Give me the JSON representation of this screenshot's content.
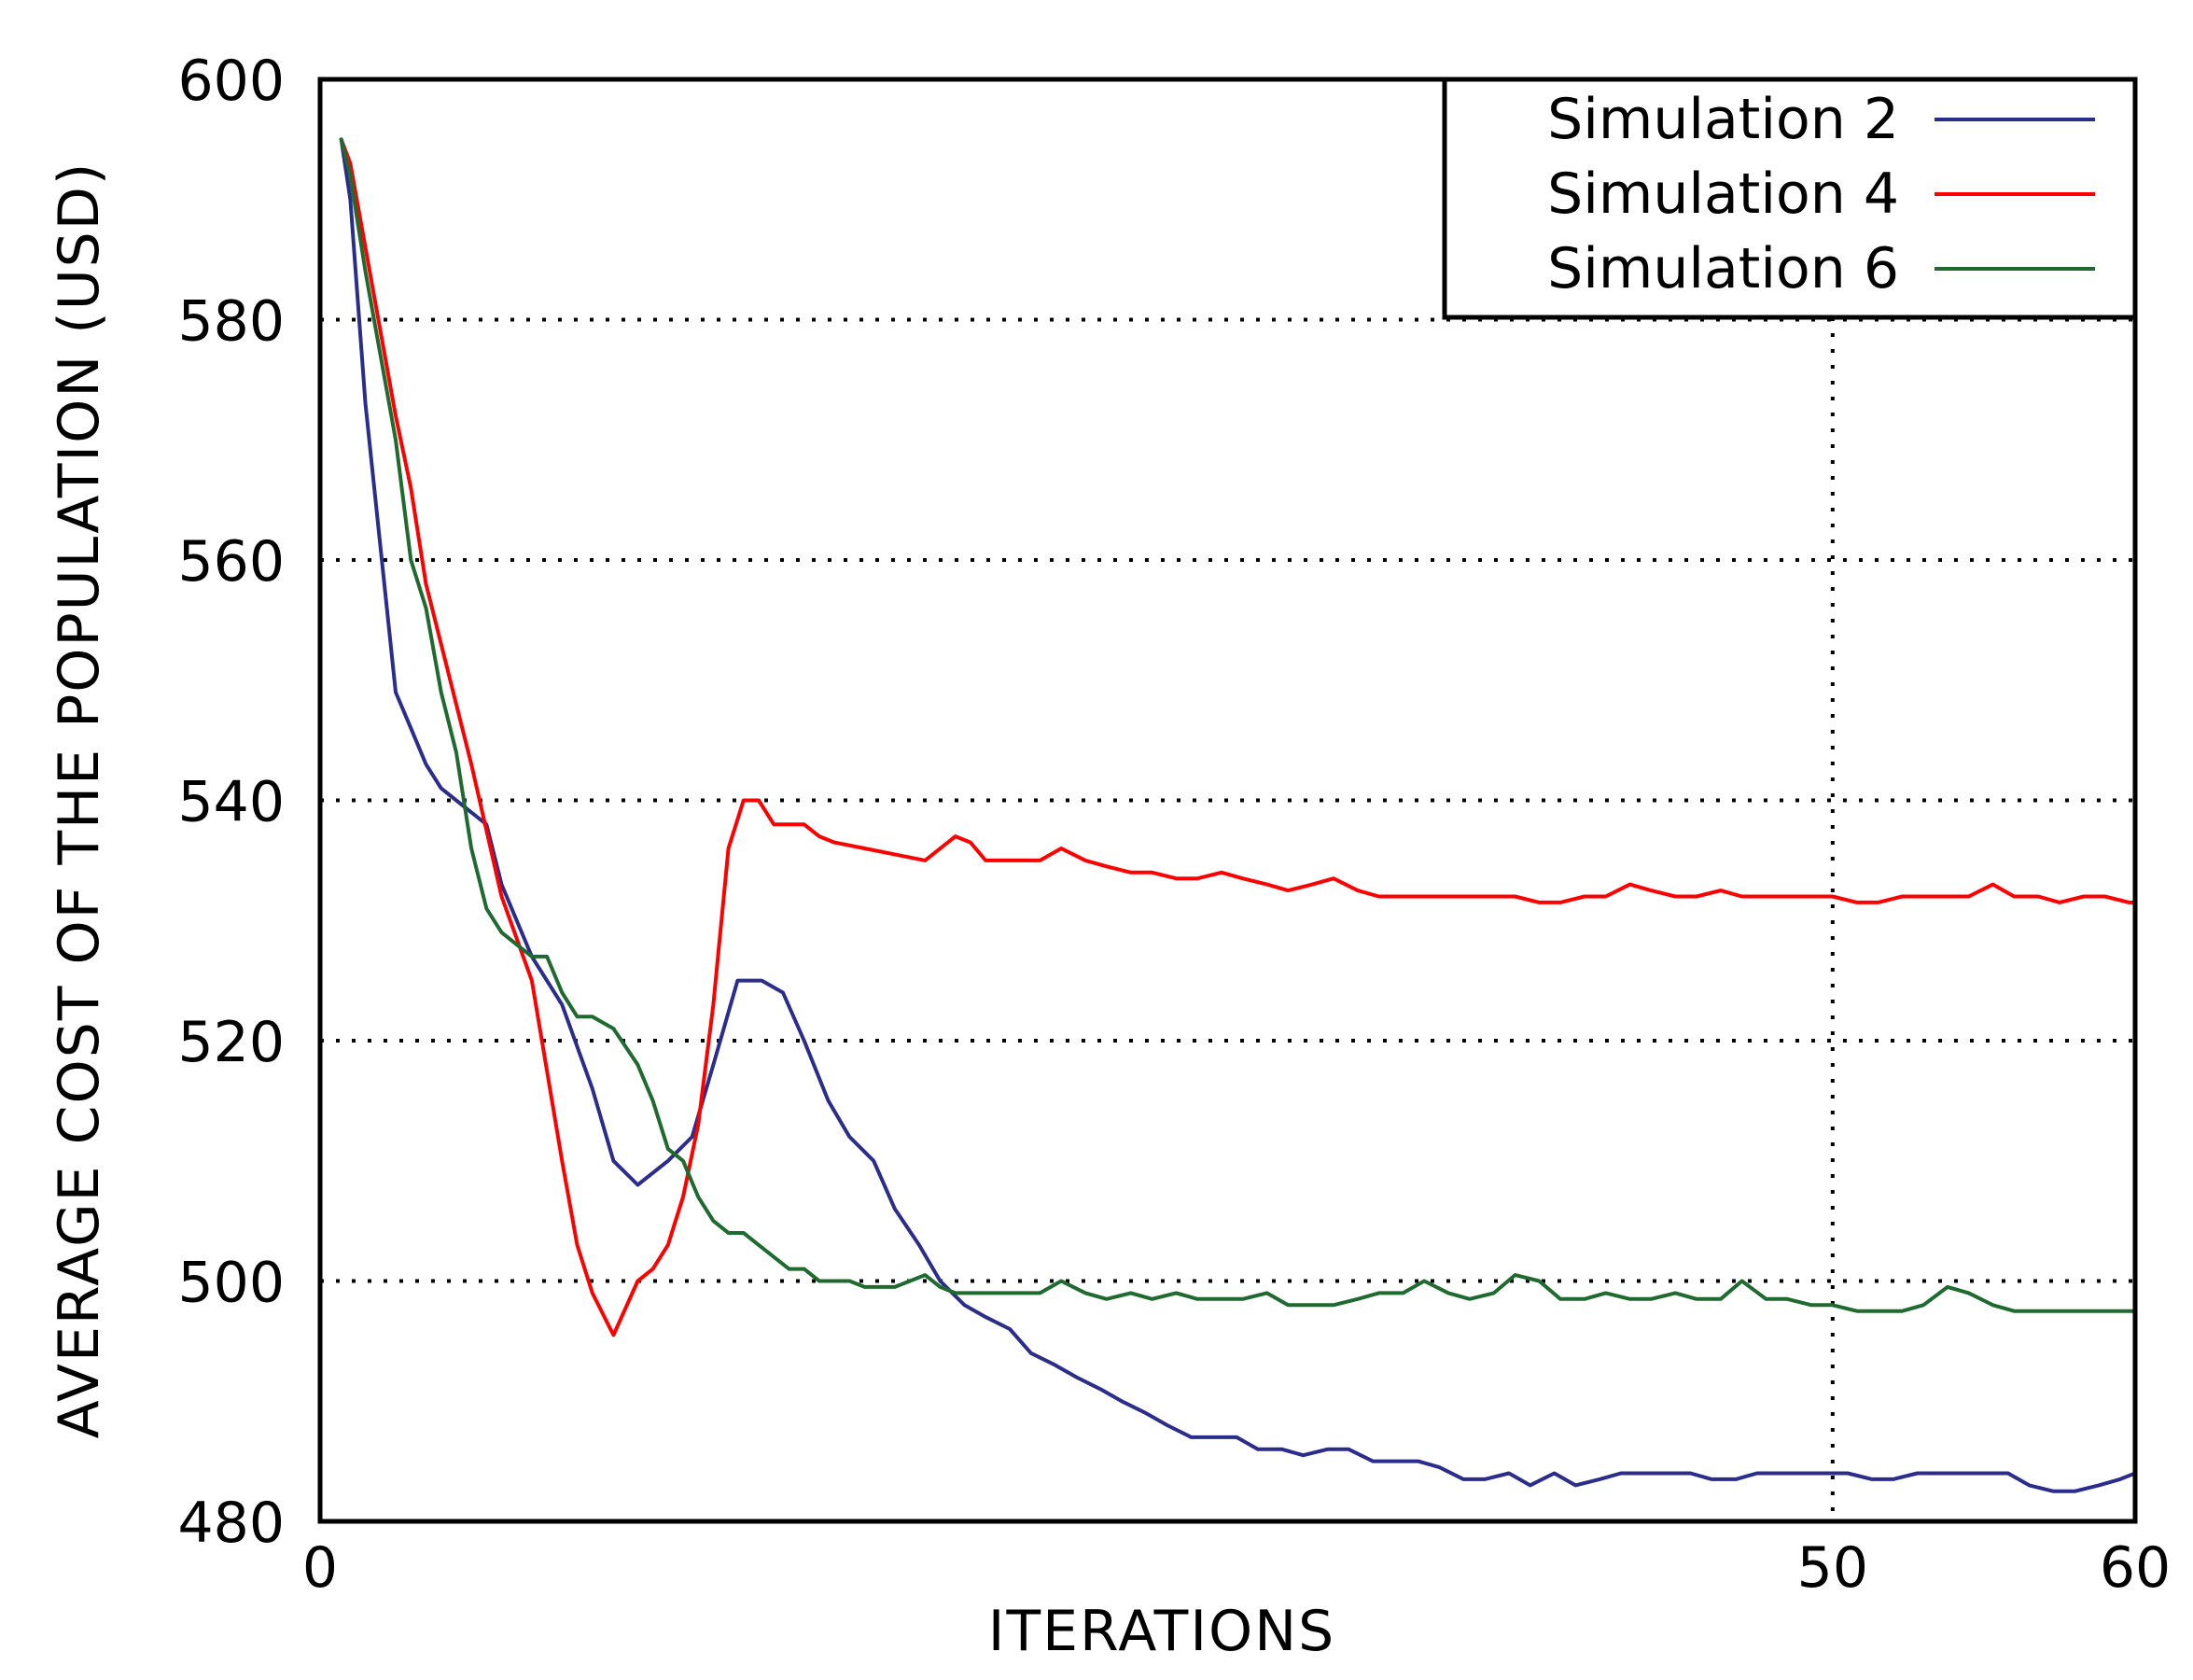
{
  "chart_data": {
    "type": "line",
    "title": "",
    "xlabel": "ITERATIONS",
    "ylabel": "AVERAGE COST OF THE POPULATION (USD)",
    "xlim": [
      0,
      60
    ],
    "ylim": [
      480,
      600
    ],
    "x_ticks": [
      0,
      50,
      60
    ],
    "y_ticks": [
      480,
      500,
      520,
      540,
      560,
      580,
      600
    ],
    "grid": {
      "horizontal_at": [
        500,
        520,
        540,
        560,
        580
      ],
      "vertical_at": [
        50
      ],
      "style": "dotted"
    },
    "legend_position": "top-right",
    "series": [
      {
        "name": "Simulation  2",
        "color": "#2b2d8c",
        "x": [
          0.7,
          1.0,
          1.5,
          2.0,
          2.5,
          3.0,
          3.5,
          4.0,
          4.5,
          5.0,
          5.5,
          6.0,
          7.0,
          8.0,
          9.0,
          9.7,
          10.5,
          11.5,
          12.3,
          13.0,
          13.8,
          14.6,
          15.3,
          16.0,
          16.8,
          17.5,
          18.3,
          19.0,
          19.8,
          20.5,
          21.3,
          22.0,
          22.8,
          23.5,
          24.3,
          25.0,
          25.8,
          26.5,
          27.3,
          28.0,
          28.8,
          29.5,
          30.3,
          31.0,
          31.8,
          32.5,
          33.3,
          34.0,
          34.8,
          35.5,
          36.3,
          37.0,
          37.8,
          38.5,
          39.3,
          40.0,
          40.8,
          41.5,
          42.3,
          43.0,
          43.8,
          44.5,
          45.3,
          46.0,
          46.8,
          47.5,
          48.3,
          49.0,
          49.8,
          50.5,
          51.3,
          52.0,
          52.8,
          53.5,
          54.3,
          55.0,
          55.8,
          56.5,
          57.3,
          58.0,
          58.8,
          59.5,
          60.0
        ],
        "values": [
          595,
          590,
          573,
          561,
          549,
          546,
          543,
          541,
          540,
          539,
          538,
          533,
          527,
          523,
          516,
          510,
          508,
          510,
          512,
          518,
          525,
          525,
          524,
          520,
          515,
          512,
          510,
          506,
          503,
          500,
          498,
          497,
          496,
          494,
          493,
          492,
          491,
          490,
          489,
          488,
          487,
          487,
          487,
          486,
          486,
          485.5,
          486,
          486,
          485,
          485,
          485,
          484.5,
          483.5,
          483.5,
          484,
          483,
          484,
          483,
          483.5,
          484,
          484,
          484,
          484,
          483.5,
          483.5,
          484,
          484,
          484,
          484,
          484,
          483.5,
          483.5,
          484,
          484,
          484,
          484,
          484,
          483,
          482.5,
          482.5,
          483,
          483.5,
          484
        ]
      },
      {
        "name": "Simulation  4",
        "color": "#ff0000",
        "x": [
          0.7,
          1.0,
          1.5,
          2.0,
          2.5,
          3.0,
          3.5,
          4.0,
          5.0,
          6.0,
          7.0,
          8.0,
          8.5,
          9.0,
          9.7,
          10.5,
          11.0,
          11.5,
          12.0,
          12.5,
          13.0,
          13.5,
          14.0,
          14.5,
          15.0,
          15.5,
          16.0,
          16.5,
          17.0,
          18.0,
          19.0,
          20.0,
          21.0,
          21.5,
          22.0,
          23.0,
          23.8,
          24.5,
          25.3,
          26.0,
          26.8,
          27.5,
          28.3,
          29.0,
          29.8,
          30.5,
          31.3,
          32.0,
          32.8,
          33.5,
          34.3,
          35.0,
          35.8,
          36.5,
          37.3,
          38.0,
          38.8,
          39.5,
          40.3,
          41.0,
          41.8,
          42.5,
          43.3,
          44.0,
          44.8,
          45.5,
          46.3,
          47.0,
          47.8,
          48.5,
          49.3,
          50.0,
          50.8,
          51.5,
          52.3,
          53.0,
          53.8,
          54.5,
          55.3,
          56.0,
          56.8,
          57.5,
          58.3,
          59.0,
          59.8,
          60.0
        ],
        "values": [
          595,
          593,
          586,
          579,
          572,
          566,
          558,
          553,
          543,
          532,
          525,
          510,
          503,
          499,
          495.5,
          500,
          501,
          503,
          507,
          513,
          523,
          536,
          540,
          540,
          538,
          538,
          538,
          537,
          536.5,
          536,
          535.5,
          535,
          537,
          536.5,
          535,
          535,
          535,
          536,
          535,
          534.5,
          534,
          534,
          533.5,
          533.5,
          534,
          533.5,
          533,
          532.5,
          533,
          533.5,
          532.5,
          532,
          532,
          532,
          532,
          532,
          532,
          532,
          531.5,
          531.5,
          532,
          532,
          533,
          532.5,
          532,
          532,
          532.5,
          532,
          532,
          532,
          532,
          532,
          531.5,
          531.5,
          532,
          532,
          532,
          532,
          533,
          532,
          532,
          531.5,
          532,
          532,
          531.5,
          531.5
        ]
      },
      {
        "name": "Simulation  6",
        "color": "#1f6a2e",
        "x": [
          0.7,
          1.0,
          1.5,
          2.0,
          2.5,
          3.0,
          3.5,
          4.0,
          4.5,
          5.0,
          5.5,
          6.0,
          6.5,
          7.0,
          7.5,
          8.0,
          8.5,
          9.0,
          9.7,
          10.5,
          11.0,
          11.5,
          12.0,
          12.5,
          13.0,
          13.5,
          14.0,
          14.5,
          15.0,
          15.5,
          16.0,
          16.5,
          17.0,
          17.5,
          18.0,
          18.5,
          19.0,
          19.5,
          20.0,
          20.5,
          21.0,
          21.5,
          22.0,
          22.5,
          23.0,
          23.8,
          24.5,
          25.3,
          26.0,
          26.8,
          27.5,
          28.3,
          29.0,
          29.8,
          30.5,
          31.3,
          32.0,
          32.8,
          33.5,
          34.3,
          35.0,
          35.8,
          36.5,
          37.3,
          38.0,
          38.8,
          39.5,
          40.3,
          41.0,
          41.8,
          42.5,
          43.3,
          44.0,
          44.8,
          45.5,
          46.3,
          47.0,
          47.8,
          48.5,
          49.3,
          50.0,
          50.8,
          51.5,
          52.3,
          53.0,
          53.8,
          54.5,
          55.3,
          56.0,
          56.8,
          57.5,
          58.3,
          59.0,
          59.8,
          60.0
        ],
        "values": [
          595,
          592,
          584,
          577,
          570,
          560,
          556,
          549,
          544,
          536,
          531,
          529,
          528,
          527,
          527,
          524,
          522,
          522,
          521,
          518,
          515,
          511,
          510,
          507,
          505,
          504,
          504,
          503,
          502,
          501,
          501,
          500,
          500,
          500,
          499.5,
          499.5,
          499.5,
          500,
          500.5,
          499.5,
          499,
          499,
          499,
          499,
          499,
          499,
          500,
          499,
          498.5,
          499,
          498.5,
          499,
          498.5,
          498.5,
          498.5,
          499,
          498,
          498,
          498,
          498.5,
          499,
          499,
          500,
          499,
          498.5,
          499,
          500.5,
          500,
          498.5,
          498.5,
          499,
          498.5,
          498.5,
          499,
          498.5,
          498.5,
          500,
          498.5,
          498.5,
          498,
          498,
          497.5,
          497.5,
          497.5,
          498,
          499.5,
          499,
          498,
          497.5,
          497.5,
          497.5,
          497.5,
          497.5,
          497.5,
          497.5
        ]
      }
    ]
  }
}
